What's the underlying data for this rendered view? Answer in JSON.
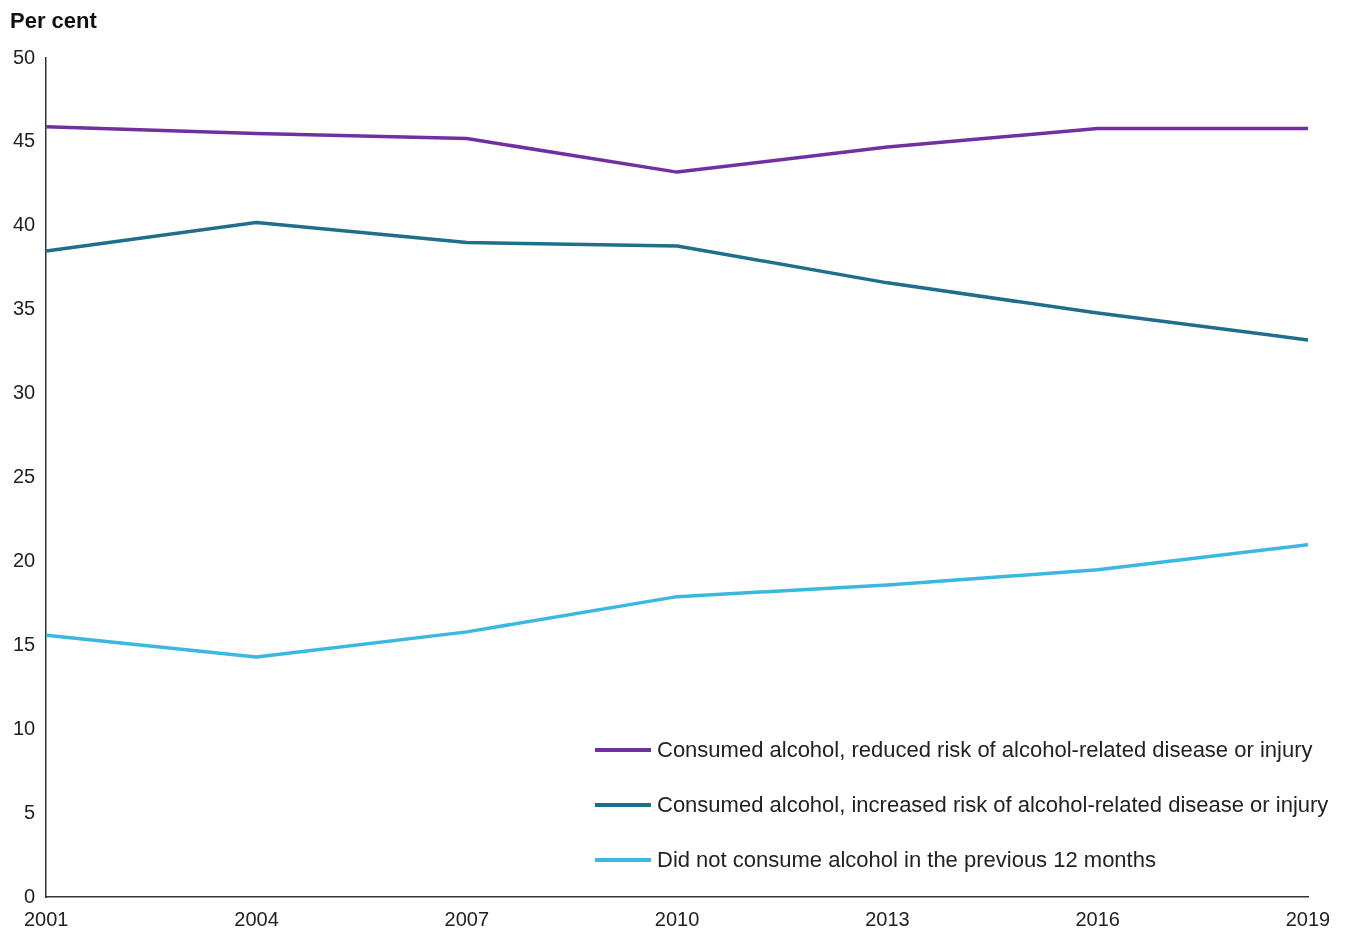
{
  "chart_data": {
    "type": "line",
    "ylabel": "Per cent",
    "x": [
      2001,
      2004,
      2007,
      2010,
      2013,
      2016,
      2019
    ],
    "xlim": [
      2001,
      2019
    ],
    "xticks": [
      2001,
      2004,
      2007,
      2010,
      2013,
      2016,
      2019
    ],
    "ylim": [
      0,
      50
    ],
    "yticks": [
      0,
      5,
      10,
      15,
      20,
      25,
      30,
      35,
      40,
      45,
      50
    ],
    "grid": false,
    "legend": "bottom right",
    "marker": "none",
    "line_style": "solid",
    "series": [
      {
        "name": "Consumed alcohol, reduced risk of alcohol-related disease or injury",
        "color": "#7030a0",
        "values": [
          45.9,
          45.5,
          45.2,
          43.2,
          44.7,
          45.8,
          45.8
        ]
      },
      {
        "name": "Consumed alcohol, increased risk of alcohol-related disease or injury",
        "color": "#1f6e8c",
        "values": [
          38.5,
          40.2,
          39.0,
          38.8,
          36.6,
          34.8,
          33.2
        ]
      },
      {
        "name": "Did not consume alcohol in the previous 12 months",
        "color": "#3bb7e0",
        "values": [
          15.6,
          14.3,
          15.8,
          17.9,
          18.6,
          19.5,
          21.0
        ]
      }
    ]
  }
}
